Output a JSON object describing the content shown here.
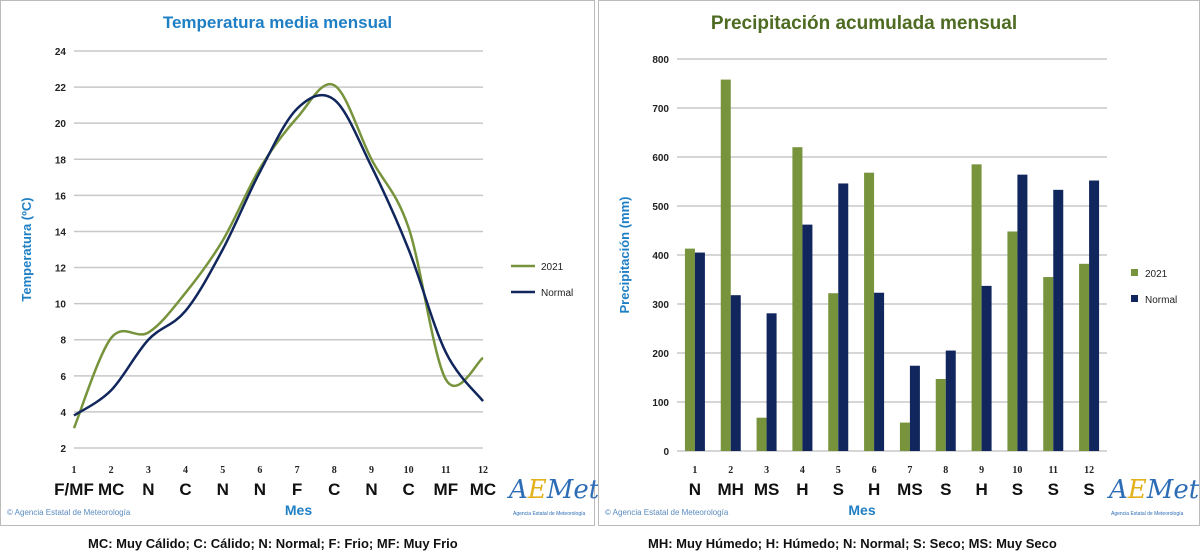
{
  "colors": {
    "series_2021": "#77933c",
    "normal": "#10265c",
    "title_left": "#1f7fc4",
    "title_right": "#4e6b22",
    "axis_label": "#1f7fc4"
  },
  "copyright": "© Agencia Estatal de Meteorología",
  "logo": {
    "text": "AEMet",
    "sub": "Agencia Estatal de Meteorología"
  },
  "chart_data": [
    {
      "type": "line",
      "title": "Temperatura media mensual",
      "xlabel": "Mes",
      "ylabel": "Temperatura (ºC)",
      "ylim": [
        2,
        24
      ],
      "yticks": [
        2,
        4,
        6,
        8,
        10,
        12,
        14,
        16,
        18,
        20,
        22,
        24
      ],
      "grid": true,
      "smooth": true,
      "legend": "right",
      "categories": [
        "1",
        "2",
        "3",
        "4",
        "5",
        "6",
        "7",
        "8",
        "9",
        "10",
        "11",
        "12"
      ],
      "class_labels": [
        "F/MF",
        "MC",
        "N",
        "C",
        "N",
        "N",
        "F",
        "C",
        "N",
        "C",
        "MF",
        "MC"
      ],
      "series": [
        {
          "name": "2021",
          "values": [
            3.1,
            8.1,
            8.4,
            10.6,
            13.5,
            17.5,
            20.3,
            22.1,
            18.0,
            14.2,
            5.8,
            7.0
          ]
        },
        {
          "name": "Normal",
          "values": [
            3.8,
            5.2,
            8.0,
            9.6,
            13.0,
            17.3,
            20.8,
            21.3,
            17.6,
            13.0,
            7.3,
            4.6
          ]
        }
      ],
      "footnote": "MC: Muy Cálido; C: Cálido; N: Normal; F: Frio; MF: Muy Frio"
    },
    {
      "type": "bar",
      "title": "Precipitación acumulada mensual",
      "xlabel": "Mes",
      "ylabel": "Precipitación (mm)",
      "ylim": [
        0,
        800
      ],
      "yticks": [
        0,
        100,
        200,
        300,
        400,
        500,
        600,
        700,
        800
      ],
      "grid": true,
      "legend": "right",
      "categories": [
        "1",
        "2",
        "3",
        "4",
        "5",
        "6",
        "7",
        "8",
        "9",
        "10",
        "11",
        "12"
      ],
      "class_labels": [
        "N",
        "MH",
        "MS",
        "H",
        "S",
        "H",
        "MS",
        "S",
        "H",
        "S",
        "S",
        "S"
      ],
      "series": [
        {
          "name": "2021",
          "values": [
            413,
            758,
            68,
            620,
            322,
            568,
            58,
            147,
            585,
            448,
            355,
            382
          ]
        },
        {
          "name": "Normal",
          "values": [
            405,
            318,
            281,
            462,
            546,
            323,
            174,
            205,
            337,
            564,
            533,
            552
          ]
        }
      ],
      "footnote": "MH: Muy Húmedo; H: Húmedo; N: Normal; S: Seco; MS: Muy Seco"
    }
  ]
}
